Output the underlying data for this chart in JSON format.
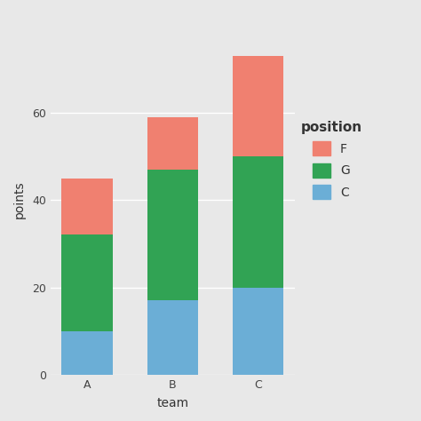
{
  "teams": [
    "A",
    "B",
    "C"
  ],
  "C_values": [
    10,
    17,
    20
  ],
  "G_values": [
    22,
    30,
    30
  ],
  "F_values": [
    13,
    12,
    23
  ],
  "colors": {
    "C": "#6BAED6",
    "G": "#31A354",
    "F": "#F08070"
  },
  "xlabel": "team",
  "ylabel": "points",
  "legend_title": "position",
  "bg_color": "#E8E8E8",
  "panel_bg": "#E8E8E8",
  "legend_bg": "#F5F5F5",
  "grid_color": "#FFFFFF",
  "ylim": [
    0,
    80
  ],
  "yticks": [
    0,
    20,
    40,
    60
  ],
  "bar_width": 0.6,
  "axis_fontsize": 10,
  "tick_fontsize": 9,
  "legend_fontsize": 10
}
